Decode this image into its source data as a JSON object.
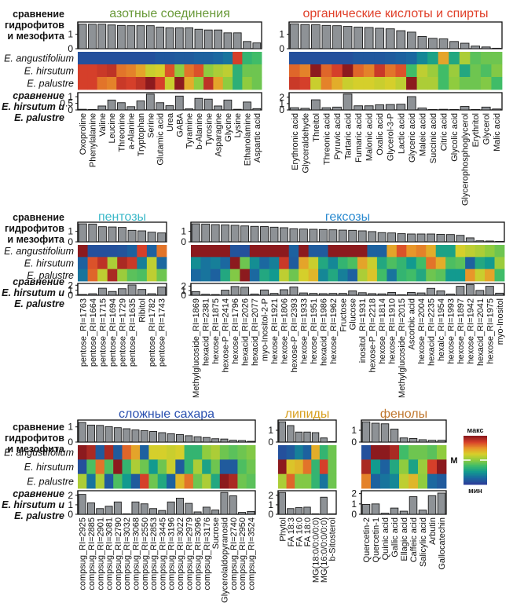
{
  "row_labels": {
    "top_compare": [
      "сравнение",
      "гидрофитов",
      "и мезофита"
    ],
    "species": [
      "E. angustifolium",
      "E. hirsutum",
      "E. palustre"
    ],
    "bottom_compare": [
      "сравнение",
      "E. hirsutum  и",
      "E. palustre"
    ]
  },
  "legend": {
    "max_label": "макс",
    "mid_label": "М",
    "min_label": "мин",
    "colors": [
      "#2b3f99",
      "#1a6aa0",
      "#129a8f",
      "#3dbb6a",
      "#8fcc3f",
      "#d8cf2a",
      "#e8962a",
      "#d8412a",
      "#8c1a1e"
    ]
  },
  "chart_data": [
    {
      "type": "bar+heatmap",
      "title": "азотные соединения",
      "title_color": "#6a9a3a",
      "categories": [
        "Oxoproline",
        "Phenylalanine",
        "Valine",
        "Leucine",
        "Threonine",
        "a-Alanine",
        "Tryptophan",
        "Serine",
        "Glutamic acid",
        "Urea",
        "GABA",
        "Tyramine",
        "b-Alanine",
        "Tyrosine",
        "Asparagine",
        "Glycine",
        "Lysine",
        "Ethanolamine",
        "Aspartic acid"
      ],
      "top_ylim": [
        0,
        1.8
      ],
      "top_ticks": [
        "0",
        "1"
      ],
      "top_values": [
        1.7,
        1.7,
        1.7,
        1.65,
        1.62,
        1.6,
        1.6,
        1.6,
        1.5,
        1.45,
        1.45,
        1.45,
        1.35,
        1.3,
        1.3,
        1.1,
        1.1,
        0.5,
        0.4
      ],
      "heatmap": [
        [
          0.05,
          0.05,
          0.05,
          0.05,
          0.05,
          0.05,
          0.05,
          0.05,
          0.07,
          0.07,
          0.08,
          0.08,
          0.1,
          0.1,
          0.12,
          0.15,
          0.88,
          0.35,
          0.38
        ],
        [
          0.88,
          0.88,
          0.9,
          0.92,
          0.8,
          0.78,
          0.72,
          0.6,
          0.62,
          0.85,
          0.5,
          0.8,
          0.85,
          0.5,
          0.55,
          0.58,
          0.33,
          0.45,
          0.45
        ],
        [
          0.88,
          0.88,
          0.8,
          0.78,
          0.9,
          0.88,
          0.92,
          1.0,
          0.88,
          0.6,
          1.0,
          0.7,
          0.5,
          0.92,
          0.72,
          0.5,
          0.33,
          0.5,
          0.45
        ]
      ],
      "bottom_ylim": [
        0,
        1.25
      ],
      "bottom_ticks": [
        "0",
        "0.5",
        "1"
      ],
      "bottom_values": [
        0.05,
        0.02,
        0.3,
        0.75,
        0.55,
        0.25,
        0.68,
        1.2,
        0.55,
        0.32,
        1.05,
        0.08,
        0.88,
        0.82,
        0.3,
        0.75,
        0.05,
        0.6,
        0.1
      ]
    },
    {
      "type": "bar+heatmap",
      "title": "органические кислоты и спирты",
      "title_color": "#e0402a",
      "categories": [
        "Erythronic acid",
        "Glyceraldehyde",
        "Threitol",
        "Threonic acid",
        "Pyruvic acid",
        "Tartaric acid",
        "Fumaric acid",
        "Malonic acid",
        "Oxalic acid",
        "Glycerol-3-P",
        "Lactic acid",
        "Glyceric acid",
        "Maleic acid",
        "Succinic acid",
        "Citric acid",
        "Glycolic acid",
        "Glycerophosphoglycerol",
        "Erythritol",
        "Glycerol",
        "Malic acid"
      ],
      "top_ylim": [
        0,
        1.8
      ],
      "top_ticks": [
        "0",
        "1"
      ],
      "top_values": [
        1.72,
        1.68,
        1.66,
        1.62,
        1.6,
        1.55,
        1.5,
        1.47,
        1.42,
        1.38,
        1.25,
        1.15,
        0.85,
        0.72,
        0.68,
        0.5,
        0.38,
        0.18,
        0.12,
        0.02
      ],
      "heatmap": [
        [
          0.05,
          0.05,
          0.05,
          0.05,
          0.05,
          0.05,
          0.07,
          0.07,
          0.07,
          0.08,
          0.1,
          0.12,
          0.2,
          0.28,
          0.72,
          0.3,
          0.55,
          0.42,
          0.45,
          0.45
        ],
        [
          0.82,
          0.78,
          1.0,
          0.82,
          0.88,
          1.0,
          0.82,
          0.78,
          0.9,
          0.8,
          0.85,
          0.38,
          0.58,
          0.52,
          0.38,
          0.52,
          0.3,
          0.45,
          0.4,
          0.48
        ],
        [
          0.9,
          0.88,
          0.6,
          0.78,
          0.7,
          0.6,
          0.62,
          0.62,
          0.6,
          0.62,
          0.58,
          1.0,
          0.55,
          0.55,
          0.38,
          0.5,
          0.45,
          0.45,
          0.48,
          0.38
        ]
      ],
      "bottom_ylim": [
        0,
        2.6
      ],
      "bottom_ticks": [
        "0",
        "1",
        "2"
      ],
      "bottom_values": [
        0.35,
        0.25,
        1.6,
        0.35,
        0.45,
        2.5,
        0.65,
        0.65,
        0.8,
        0.85,
        0.9,
        2.1,
        0.3,
        0.02,
        0.1,
        0.02,
        0.55,
        0.02,
        0.45,
        0.15
      ]
    },
    {
      "type": "bar+heatmap",
      "title": "пентозы",
      "title_color": "#3ab8c8",
      "categories": [
        "pentose_RI=1763",
        "pentose_RI=1664",
        "pentose_RI=1715",
        "pentose_RI=1694",
        "pentose_RI=1729",
        "pentose_RI=1635",
        "Ribitol",
        "pentose_RI=1782",
        "pentose_RI=1743"
      ],
      "top_ylim": [
        0,
        1.8
      ],
      "top_ticks": [
        "0",
        "1"
      ],
      "top_values": [
        1.72,
        1.7,
        1.45,
        1.42,
        1.38,
        1.1,
        1.05,
        0.92,
        0.85
      ],
      "heatmap": [
        [
          1.0,
          0.05,
          0.05,
          0.05,
          0.06,
          0.1,
          0.88,
          0.1,
          0.8
        ],
        [
          0.1,
          0.85,
          0.92,
          0.55,
          0.95,
          0.9,
          0.18,
          0.58,
          0.12
        ],
        [
          0.15,
          0.82,
          0.58,
          0.95,
          0.52,
          0.42,
          0.4,
          0.58,
          0.45
        ]
      ],
      "bottom_ylim": [
        0,
        2.2
      ],
      "bottom_ticks": [
        "0",
        "1",
        "2"
      ],
      "bottom_values": [
        0.15,
        0.3,
        1.4,
        0.75,
        1.3,
        2.05,
        1.15,
        0.3,
        1.65
      ]
    },
    {
      "type": "bar+heatmap",
      "title": "гексозы",
      "title_color": "#2a8ad0",
      "categories": [
        "Methylglucoside_RI=1869",
        "hexacid_RI=2381",
        "hexose_RI=1875",
        "hexose-P_RI=2414",
        "hexose_RI=1796",
        "hexacid_RI=2026",
        "hexacid_RI=2077",
        "myo-Inositol-2-P",
        "hexose_RI=1921",
        "hexose_RI=1806",
        "hexose-P_RI=2393",
        "hexose_RI=1933",
        "hexose_RI=1951",
        "hexacid_RI=1986",
        "hexose_RI=1962",
        "Fructose",
        "Glucose",
        "inositol_RI=1931",
        "hexose-P_RI=2218",
        "hexose_RI=1814",
        "hexose_RI=1910",
        "Methylglucoside_RI=2015",
        "Ascorbic acid",
        "hexose_RI=2004",
        "hexacid_RI=2235",
        "hexalc_RI=1954",
        "hexose_RI=1993",
        "hexose_RI=1897",
        "hexose_RI=1942",
        "hexacid_RI=2041",
        "hexose_RI=1975",
        "myo-Inositol"
      ],
      "top_ylim": [
        0,
        1.8
      ],
      "top_ticks": [
        "0",
        "1"
      ],
      "top_values": [
        1.72,
        1.7,
        1.65,
        1.62,
        1.58,
        1.52,
        1.48,
        1.46,
        1.4,
        1.35,
        1.25,
        1.22,
        1.2,
        1.18,
        1.15,
        1.12,
        1.1,
        1.05,
        0.98,
        0.88,
        0.85,
        0.78,
        0.75,
        0.75,
        0.75,
        0.72,
        0.7,
        0.62,
        0.38,
        0.1,
        0.08,
        0.03
      ],
      "heatmap": [
        [
          1.0,
          1.0,
          1.0,
          1.0,
          0.06,
          0.05,
          1.0,
          1.0,
          1.0,
          1.0,
          0.1,
          1.0,
          0.08,
          0.08,
          1.0,
          1.0,
          1.0,
          1.0,
          0.1,
          0.1,
          0.72,
          0.85,
          0.75,
          0.78,
          0.7,
          0.28,
          0.28,
          0.62,
          0.58,
          0.55,
          0.5,
          0.45
        ],
        [
          0.22,
          0.15,
          0.18,
          0.12,
          1.0,
          0.45,
          0.22,
          0.12,
          0.18,
          0.9,
          0.08,
          0.72,
          0.6,
          0.3,
          0.2,
          0.35,
          0.4,
          0.72,
          0.6,
          0.3,
          0.4,
          0.35,
          0.25,
          0.38,
          0.8,
          0.7,
          0.4,
          0.42,
          0.1,
          0.3,
          0.25,
          0.52
        ],
        [
          0.12,
          0.15,
          0.1,
          0.3,
          0.48,
          1.0,
          0.12,
          0.3,
          0.25,
          0.58,
          0.45,
          0.62,
          0.68,
          0.2,
          0.3,
          0.18,
          0.1,
          0.55,
          0.65,
          0.38,
          0.15,
          0.35,
          0.38,
          0.3,
          0.45,
          0.42,
          0.25,
          0.25,
          0.75,
          0.6,
          0.72,
          0.38
        ]
      ],
      "bottom_ylim": [
        0,
        2.4
      ],
      "bottom_ticks": [
        "0",
        "1",
        "2"
      ],
      "bottom_values": [
        0.8,
        0.2,
        0.15,
        1.1,
        1.9,
        1.75,
        0.25,
        1.15,
        0.4,
        1.2,
        1.8,
        0.5,
        0.4,
        0.35,
        0.4,
        0.4,
        0.95,
        0.55,
        0.35,
        0.3,
        0.6,
        0.05,
        0.6,
        0.5,
        1.5,
        0.95,
        0.25,
        1.95,
        2.3,
        1.05,
        1.95,
        0.45
      ]
    },
    {
      "type": "bar+heatmap",
      "title": "сложные  сахара",
      "title_color": "#2a50b0",
      "categories": [
        "compsug_RI=2925",
        "compsug_RI=2885",
        "compsug_RI=2901",
        "compsug_RI=3081",
        "compsug_RI=2790",
        "compsug_RI=3032",
        "compsug_RI=3068",
        "compsug_RI=2550",
        "compsug_RI=2853",
        "compsug_RI=3445",
        "compsug_RI=3196",
        "compsug_RI=3022",
        "compsug_RI=2979",
        "compsug_RI=3096",
        "compsug_RI=3176",
        "Sucrose",
        "Glycerolaldopyranosid",
        "compsug_RI=2740",
        "compsug_RI=2950",
        "compsug_RI=3524"
      ],
      "top_ylim": [
        0,
        1.4
      ],
      "top_ticks": [
        "0",
        "1"
      ],
      "top_values": [
        1.3,
        1.12,
        1.1,
        1.02,
        0.95,
        0.88,
        0.8,
        0.75,
        0.7,
        0.62,
        0.55,
        0.5,
        0.42,
        0.35,
        0.3,
        0.22,
        0.2,
        0.12,
        0.1,
        0.05
      ],
      "heatmap": [
        [
          1.0,
          0.95,
          0.08,
          0.95,
          0.08,
          0.82,
          0.72,
          0.1,
          0.62,
          0.62,
          0.6,
          0.62,
          0.35,
          0.35,
          0.5,
          0.55,
          0.45,
          0.42,
          0.45,
          0.48
        ],
        [
          0.05,
          0.4,
          0.8,
          0.4,
          1.0,
          0.35,
          0.55,
          0.45,
          0.25,
          0.45,
          0.6,
          0.08,
          0.35,
          0.55,
          0.28,
          0.45,
          0.08,
          0.08,
          0.4,
          0.45
        ],
        [
          0.55,
          0.15,
          0.55,
          0.08,
          0.4,
          0.25,
          0.08,
          0.88,
          0.45,
          0.3,
          0.1,
          0.68,
          0.8,
          0.45,
          0.55,
          0.3,
          1.0,
          0.95,
          0.45,
          0.42
        ]
      ],
      "bottom_ylim": [
        0,
        2.4
      ],
      "bottom_ticks": [
        "0",
        "1",
        "2"
      ],
      "bottom_values": [
        2.1,
        1.2,
        0.6,
        0.85,
        1.3,
        0.05,
        1.3,
        1.1,
        0.6,
        0.4,
        1.3,
        1.7,
        1.15,
        0.25,
        0.75,
        0.45,
        2.3,
        1.95,
        0.2,
        0.3
      ]
    },
    {
      "type": "bar+heatmap",
      "title": "липиды",
      "title_color": "#d8a020",
      "categories": [
        "Phytol",
        "FA 18:3",
        "FA 16:0",
        "FA 18:0",
        "MG(18:0/0:0/0:0)",
        "MG(16:0/0:0/0:0)",
        "b-Sitosterol"
      ],
      "top_ylim": [
        0,
        1.8
      ],
      "top_ticks": [
        "0",
        "1"
      ],
      "top_values": [
        1.72,
        1.4,
        0.85,
        0.85,
        0.8,
        0.35,
        0.02
      ],
      "heatmap": [
        [
          0.05,
          0.08,
          0.18,
          0.1,
          0.7,
          0.35,
          0.45
        ],
        [
          1.0,
          0.65,
          0.68,
          0.8,
          0.35,
          0.88,
          0.45
        ],
        [
          0.55,
          0.82,
          0.48,
          0.48,
          0.35,
          0.15,
          0.45
        ]
      ],
      "bottom_ylim": [
        0,
        2.4
      ],
      "bottom_ticks": [
        "0",
        "1",
        "2"
      ],
      "bottom_values": [
        2.3,
        0.6,
        0.7,
        0.75,
        0.05,
        1.8,
        0.05
      ]
    },
    {
      "type": "bar+heatmap",
      "title": "фенолы",
      "title_color": "#c07830",
      "categories": [
        "Quercetin-2",
        "Quercetin-1",
        "Quinic acid",
        "Gallic acid",
        "Ellagic acid",
        "Caffeic acid",
        "Salicylic acid",
        "Arbutin",
        "Gallocatechin"
      ],
      "top_ylim": [
        0,
        1.8
      ],
      "top_ticks": [
        "0",
        "1"
      ],
      "top_values": [
        1.72,
        1.6,
        1.55,
        1.1,
        0.35,
        0.3,
        0.2,
        0.15,
        0.15
      ],
      "heatmap": [
        [
          0.05,
          1.0,
          1.0,
          0.95,
          0.38,
          0.45,
          0.45,
          0.42,
          0.5
        ],
        [
          0.95,
          0.25,
          0.1,
          0.3,
          0.5,
          0.28,
          0.52,
          0.88,
          1.0
        ],
        [
          0.78,
          0.1,
          0.15,
          0.2,
          0.58,
          0.68,
          0.5,
          0.12,
          0.08
        ]
      ],
      "bottom_ylim": [
        0,
        2.2
      ],
      "bottom_ticks": [
        "0",
        "1",
        "2"
      ],
      "bottom_values": [
        0.95,
        1.0,
        0.1,
        0.6,
        0.3,
        1.7,
        0.4,
        1.8,
        2.05
      ]
    }
  ]
}
